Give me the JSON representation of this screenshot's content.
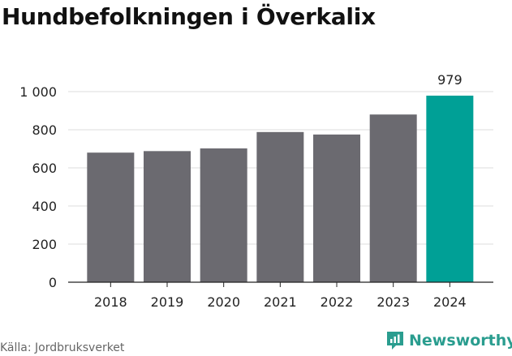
{
  "title": "Hundbefolkningen i Överkalix",
  "source": "Källa: Jordbruksverket",
  "brand": {
    "name": "Newsworthy",
    "icon": "newsworthy-logo-icon"
  },
  "colors": {
    "bar": "#6b6a70",
    "highlight": "#00a096",
    "grid": "#dcdcdc",
    "axis": "#222222",
    "brand": "#2a9d8f"
  },
  "chart_data": {
    "type": "bar",
    "title": "Hundbefolkningen i Överkalix",
    "xlabel": "",
    "ylabel": "",
    "categories": [
      "2018",
      "2019",
      "2020",
      "2021",
      "2022",
      "2023",
      "2024"
    ],
    "values": [
      680,
      688,
      702,
      788,
      775,
      880,
      979
    ],
    "highlight_index": 6,
    "data_labels": [
      {
        "index": 6,
        "text": "979"
      }
    ],
    "ylim": [
      0,
      1000
    ],
    "yticks": [
      0,
      200,
      400,
      600,
      800,
      1000
    ],
    "ytick_labels": [
      "0",
      "200",
      "400",
      "600",
      "800",
      "1 000"
    ],
    "grid": true,
    "legend": "none"
  }
}
